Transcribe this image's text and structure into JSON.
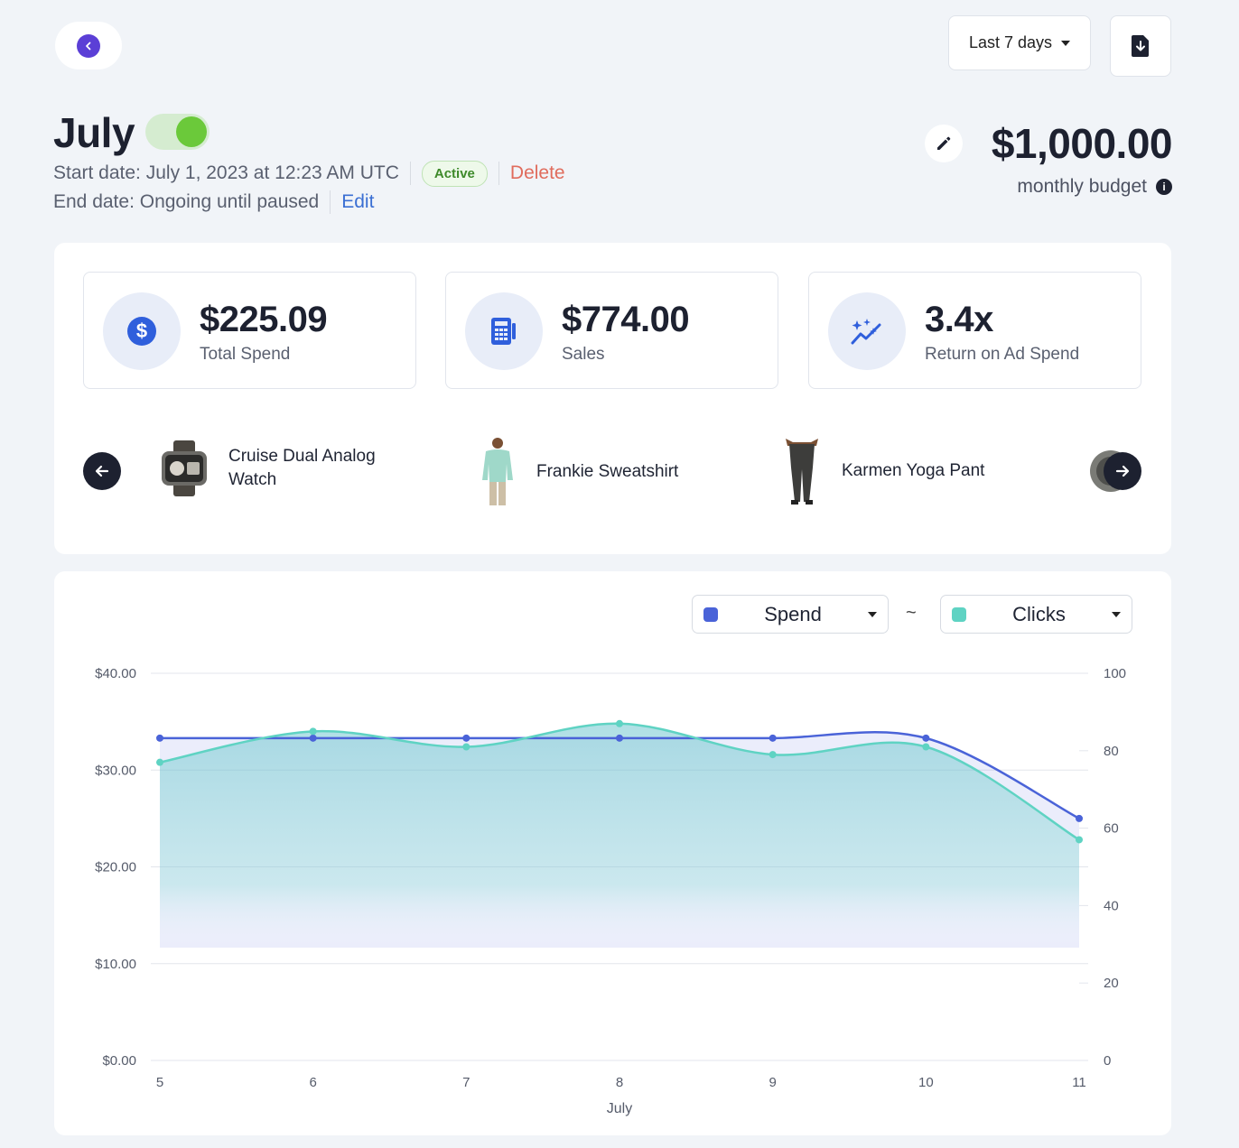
{
  "header": {
    "date_range": "Last 7 days"
  },
  "campaign": {
    "title": "July",
    "start_date": "Start date: July 1, 2023 at 12:23 AM UTC",
    "status": "Active",
    "delete_label": "Delete",
    "end_date": "End date: Ongoing until paused",
    "edit_label": "Edit",
    "budget": "$1,000.00",
    "budget_label": "monthly budget",
    "info": "i"
  },
  "stats": [
    {
      "value": "$225.09",
      "label": "Total Spend",
      "icon": "dollar-icon"
    },
    {
      "value": "$774.00",
      "label": "Sales",
      "icon": "register-icon"
    },
    {
      "value": "3.4x",
      "label": "Return on Ad Spend",
      "icon": "sparkle-trend-icon"
    }
  ],
  "products": [
    {
      "name_line1": "Cruise Dual Analog",
      "name_line2": "Watch"
    },
    {
      "name_line1": "Frankie Sweatshirt",
      "name_line2": ""
    },
    {
      "name_line1": "Karmen Yoga Pant",
      "name_line2": ""
    }
  ],
  "chart_controls": {
    "left_metric": "Spend",
    "separator": "~",
    "right_metric": "Clicks",
    "left_color": "#4a63d8",
    "right_color": "#5fd3c3"
  },
  "chart_data": {
    "type": "area",
    "categories": [
      "5",
      "6",
      "7",
      "8",
      "9",
      "10",
      "11"
    ],
    "xlabel": "July",
    "y_left_ticks": [
      "$40.00",
      "$30.00",
      "$20.00",
      "$10.00",
      "$0.00"
    ],
    "y_right_ticks": [
      "100",
      "80",
      "60",
      "40",
      "20",
      "0"
    ],
    "y_left_range": [
      0,
      40
    ],
    "y_right_range": [
      0,
      100
    ],
    "series": [
      {
        "name": "Spend",
        "axis": "left",
        "color": "#4a63d8",
        "values": [
          33.3,
          33.3,
          33.3,
          33.3,
          33.3,
          33.3,
          25.0
        ]
      },
      {
        "name": "Clicks",
        "axis": "right",
        "color": "#5fd3c3",
        "values": [
          77,
          85,
          81,
          87,
          79,
          81,
          57
        ]
      }
    ]
  }
}
